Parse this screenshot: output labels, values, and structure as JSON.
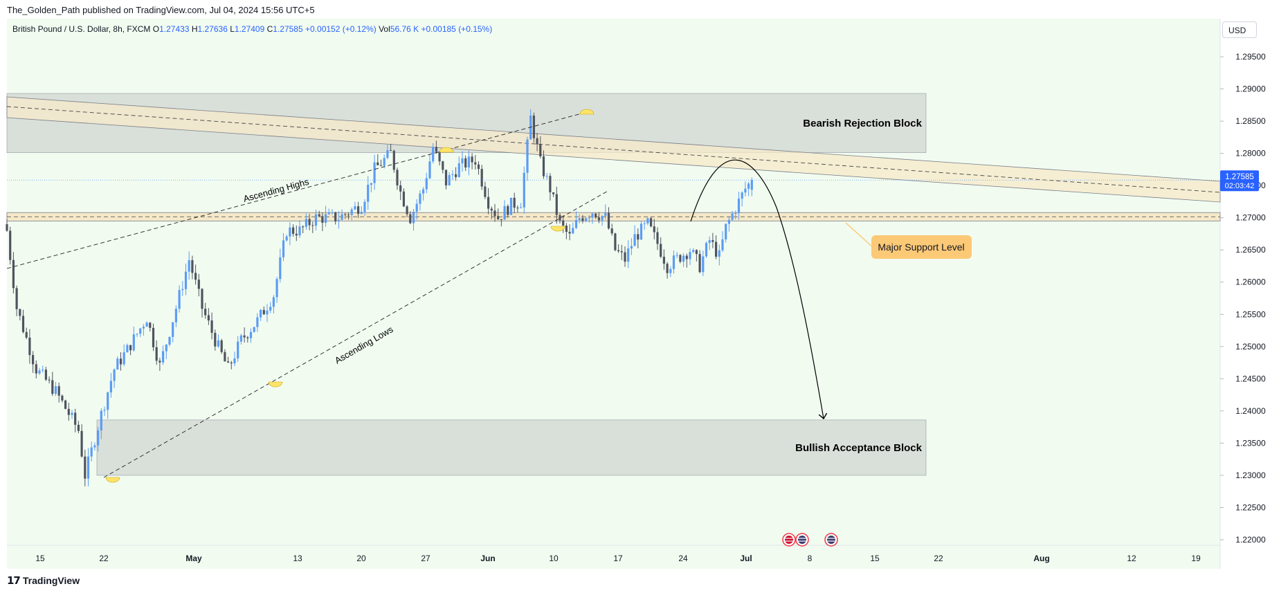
{
  "header": {
    "attribution": "The_Golden_Path published on TradingView.com, Jul 04, 2024 15:56 UTC+5"
  },
  "footer": {
    "brand": "TradingView",
    "logo_icon": "tradingview-logo-icon"
  },
  "currency_button": "USD",
  "legend": {
    "symbol": "British Pound / U.S. Dollar, 8h, FXCM",
    "o_label": "O",
    "o_value": "1.27433",
    "h_label": "H",
    "h_value": "1.27636",
    "l_label": "L",
    "l_value": "1.27409",
    "c_label": "C",
    "c_value": "1.27585",
    "change": "+0.00152 (+0.12%)",
    "vol_label": "Vol",
    "vol_value": "56.76 K",
    "vol_change": "+0.00185 (+0.15%)"
  },
  "price_badge": {
    "price": "1.27585",
    "countdown": "02:03:42"
  },
  "colors": {
    "up": "#5b9cf6",
    "down": "#50535e",
    "background": "#f1fbf0",
    "zone": "#d9e0d9",
    "channel": "#f5e9c9",
    "callout": "#fcc976",
    "highlight": "#ffe46b"
  },
  "annotations": {
    "bearish_block": "Bearish Rejection Block",
    "bullish_block": "Bullish Acceptance Block",
    "support_callout": "Major Support Level",
    "ascending_highs": "Ascending Highs",
    "ascending_lows": "Ascending Lows"
  },
  "event_icons": [
    "uk-flag-icon",
    "us-flag-icon",
    "us-flag-icon"
  ],
  "chart_data": {
    "type": "candlestick",
    "instrument": "British Pound / U.S. Dollar",
    "timeframe": "8h",
    "y_ticks": [
      "1.29500",
      "1.29000",
      "1.28500",
      "1.28000",
      "1.27500",
      "1.27000",
      "1.26500",
      "1.26000",
      "1.25500",
      "1.25000",
      "1.24500",
      "1.24000",
      "1.23500",
      "1.23000",
      "1.22500",
      "1.22000"
    ],
    "x_ticks": [
      "15",
      "22",
      "May",
      "13",
      "20",
      "27",
      "Jun",
      "10",
      "17",
      "24",
      "Jul",
      "8",
      "15",
      "22",
      "Aug",
      "12",
      "19"
    ],
    "ylim": [
      1.2185,
      1.2995
    ],
    "last_price": 1.27585,
    "support_level": [
      1.2695,
      1.2708
    ],
    "bearish_block_range": [
      1.2801,
      1.2893
    ],
    "bullish_block_range": [
      1.23,
      1.2386
    ],
    "path": [
      [
        0,
        1.268
      ],
      [
        3,
        1.256
      ],
      [
        9,
        1.2465
      ],
      [
        15,
        1.243
      ],
      [
        22,
        1.237
      ],
      [
        24,
        1.23
      ],
      [
        29,
        1.2395
      ],
      [
        33,
        1.2465
      ],
      [
        37,
        1.2495
      ],
      [
        43,
        1.2545
      ],
      [
        47,
        1.247
      ],
      [
        52,
        1.256
      ],
      [
        56,
        1.2635
      ],
      [
        60,
        1.256
      ],
      [
        64,
        1.251
      ],
      [
        68,
        1.2465
      ],
      [
        72,
        1.251
      ],
      [
        77,
        1.254
      ],
      [
        82,
        1.258
      ],
      [
        86,
        1.268
      ],
      [
        90,
        1.268
      ],
      [
        95,
        1.27
      ],
      [
        102,
        1.27
      ],
      [
        109,
        1.272
      ],
      [
        113,
        1.2775
      ],
      [
        118,
        1.28
      ],
      [
        121,
        1.274
      ],
      [
        124,
        1.27
      ],
      [
        128,
        1.2745
      ],
      [
        131,
        1.281
      ],
      [
        135,
        1.2755
      ],
      [
        139,
        1.278
      ],
      [
        144,
        1.279
      ],
      [
        148,
        1.2725
      ],
      [
        151,
        1.27
      ],
      [
        155,
        1.272
      ],
      [
        158,
        1.2725
      ],
      [
        161,
        1.2855
      ],
      [
        164,
        1.2785
      ],
      [
        167,
        1.2745
      ],
      [
        170,
        1.269
      ],
      [
        173,
        1.267
      ],
      [
        176,
        1.27
      ],
      [
        180,
        1.271
      ],
      [
        184,
        1.27
      ],
      [
        187,
        1.265
      ],
      [
        190,
        1.2635
      ],
      [
        193,
        1.267
      ],
      [
        197,
        1.269
      ],
      [
        200,
        1.266
      ],
      [
        203,
        1.2625
      ],
      [
        207,
        1.264
      ],
      [
        210,
        1.265
      ],
      [
        213,
        1.2625
      ],
      [
        216,
        1.2665
      ],
      [
        219,
        1.264
      ],
      [
        221,
        1.2685
      ],
      [
        224,
        1.2715
      ],
      [
        227,
        1.2745
      ],
      [
        229,
        1.27585
      ]
    ]
  }
}
